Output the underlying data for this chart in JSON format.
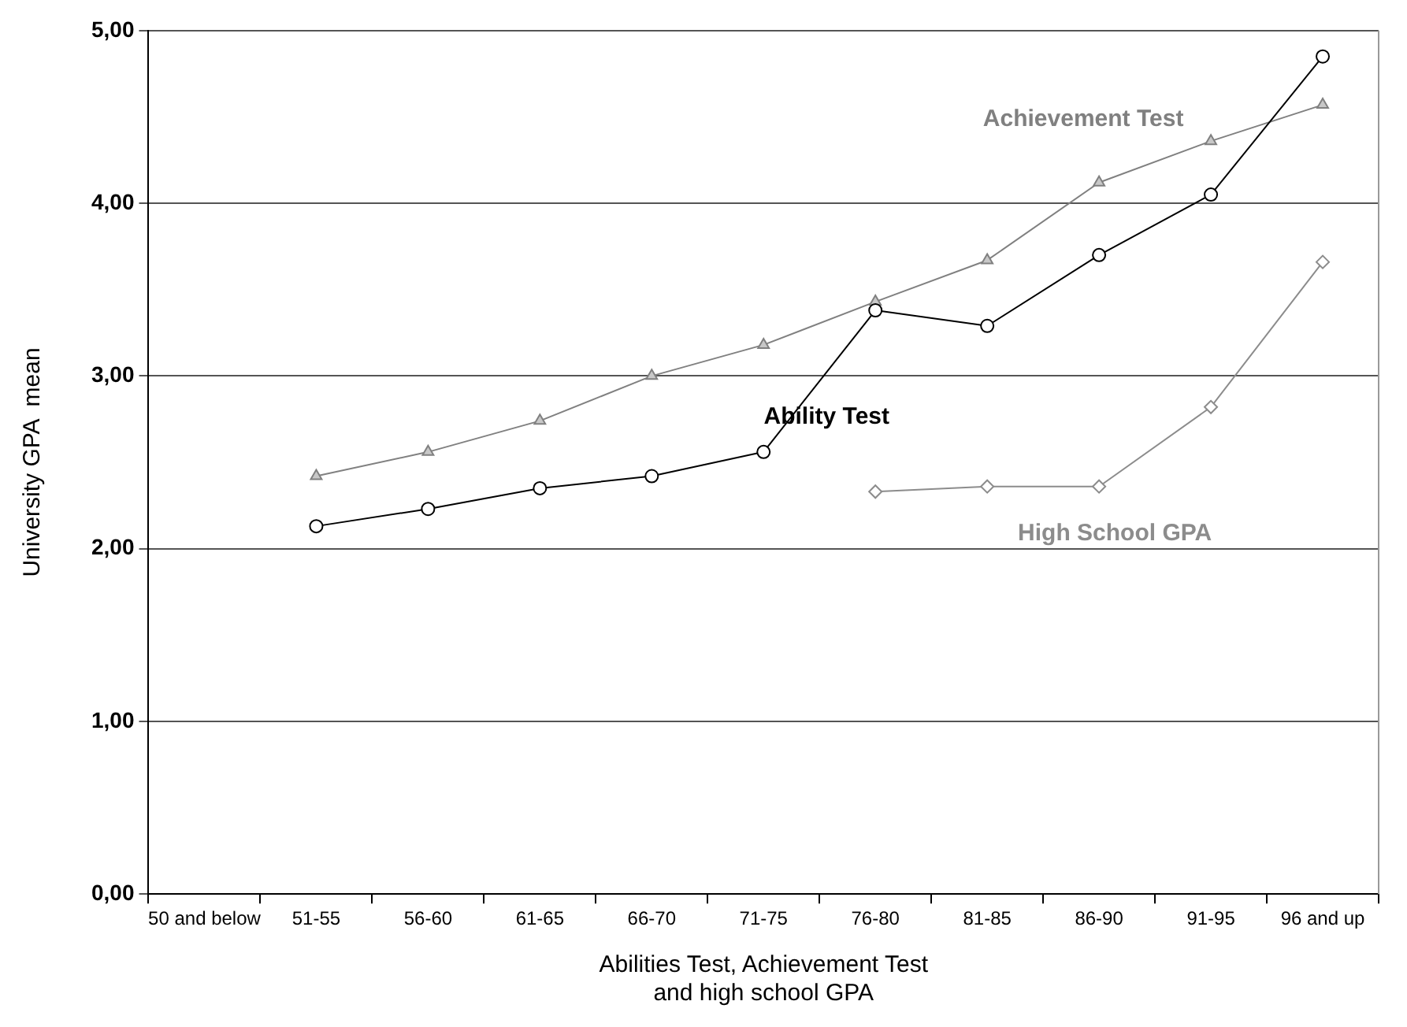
{
  "chart_data": {
    "type": "line",
    "xlabel": "Abilities Test, Achievement Test\nand high school GPA",
    "ylabel": "University GPA  mean",
    "categories": [
      "50 and below",
      "51-55",
      "56-60",
      "61-65",
      "66-70",
      "71-75",
      "76-80",
      "81-85",
      "86-90",
      "91-95",
      "96 and up"
    ],
    "series": [
      {
        "name": "Ability Test",
        "color": "#000000",
        "marker": "circle",
        "values": [
          null,
          2.13,
          2.23,
          2.35,
          2.42,
          2.56,
          3.38,
          3.29,
          3.7,
          4.05,
          4.85
        ]
      },
      {
        "name": "Achievement Test",
        "color": "#808080",
        "marker": "triangle",
        "values": [
          null,
          2.42,
          2.56,
          2.74,
          3.0,
          3.18,
          3.43,
          3.67,
          4.12,
          4.36,
          4.57
        ]
      },
      {
        "name": "High School GPA",
        "color": "#8c8c8c",
        "marker": "diamond",
        "values": [
          null,
          null,
          null,
          null,
          null,
          null,
          2.33,
          2.36,
          2.36,
          2.82,
          3.66
        ]
      }
    ],
    "ylim": [
      0,
      5
    ],
    "yticks": [
      {
        "value": 0,
        "label": "0,00"
      },
      {
        "value": 1,
        "label": "1,00"
      },
      {
        "value": 2,
        "label": "2,00"
      },
      {
        "value": 3,
        "label": "3,00"
      },
      {
        "value": 4,
        "label": "4,00"
      },
      {
        "value": 5,
        "label": "5,00"
      }
    ],
    "grid": "y",
    "legend": false
  }
}
